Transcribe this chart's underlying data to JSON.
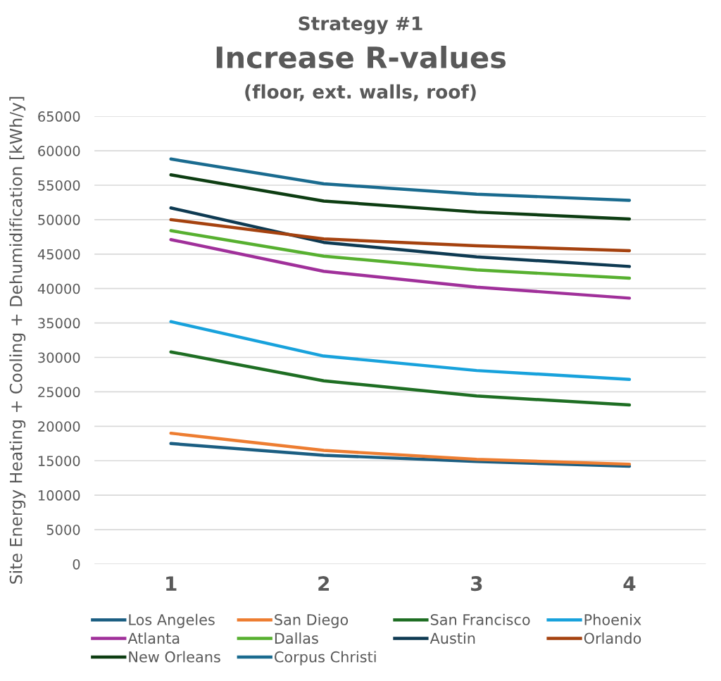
{
  "chart_data": {
    "type": "line",
    "title": "Increase R-values",
    "subtitle": "(floor, ext. walls, roof)",
    "annotations": [
      "Strategy #1"
    ],
    "ylabel": "Site Energy Heating + Cooling + Dehumidification [kWh/y]",
    "categories": [
      "1",
      "2",
      "3",
      "4"
    ],
    "ylim": [
      0,
      65000
    ],
    "yticks": [
      0,
      5000,
      10000,
      15000,
      20000,
      25000,
      30000,
      35000,
      40000,
      45000,
      50000,
      55000,
      60000,
      65000
    ],
    "grid": "y",
    "legend": "bottom",
    "marker": "none",
    "line_style": "solid",
    "series": [
      {
        "name": "Los Angeles",
        "color": "#1b5e82",
        "values": [
          17500,
          15800,
          14900,
          14200
        ]
      },
      {
        "name": "San Diego",
        "color": "#ed7d31",
        "values": [
          19000,
          16500,
          15200,
          14500
        ]
      },
      {
        "name": "San Francisco",
        "color": "#1e6e23",
        "values": [
          30800,
          26600,
          24400,
          23100
        ]
      },
      {
        "name": "Phoenix",
        "color": "#18a2dc",
        "values": [
          35200,
          30200,
          28100,
          26800
        ]
      },
      {
        "name": "Atlanta",
        "color": "#a0309a",
        "values": [
          47100,
          42500,
          40200,
          38600
        ]
      },
      {
        "name": "Dallas",
        "color": "#57b030",
        "values": [
          48400,
          44700,
          42700,
          41500
        ]
      },
      {
        "name": "Austin",
        "color": "#0e3a52",
        "values": [
          51700,
          46700,
          44600,
          43200
        ]
      },
      {
        "name": "Orlando",
        "color": "#a5420f",
        "values": [
          50000,
          47200,
          46200,
          45500
        ]
      },
      {
        "name": "New Orleans",
        "color": "#0d3d12",
        "values": [
          56500,
          52700,
          51100,
          50100
        ]
      },
      {
        "name": "Corpus Christi",
        "color": "#1a6b8f",
        "values": [
          58800,
          55200,
          53700,
          52800
        ]
      }
    ]
  }
}
